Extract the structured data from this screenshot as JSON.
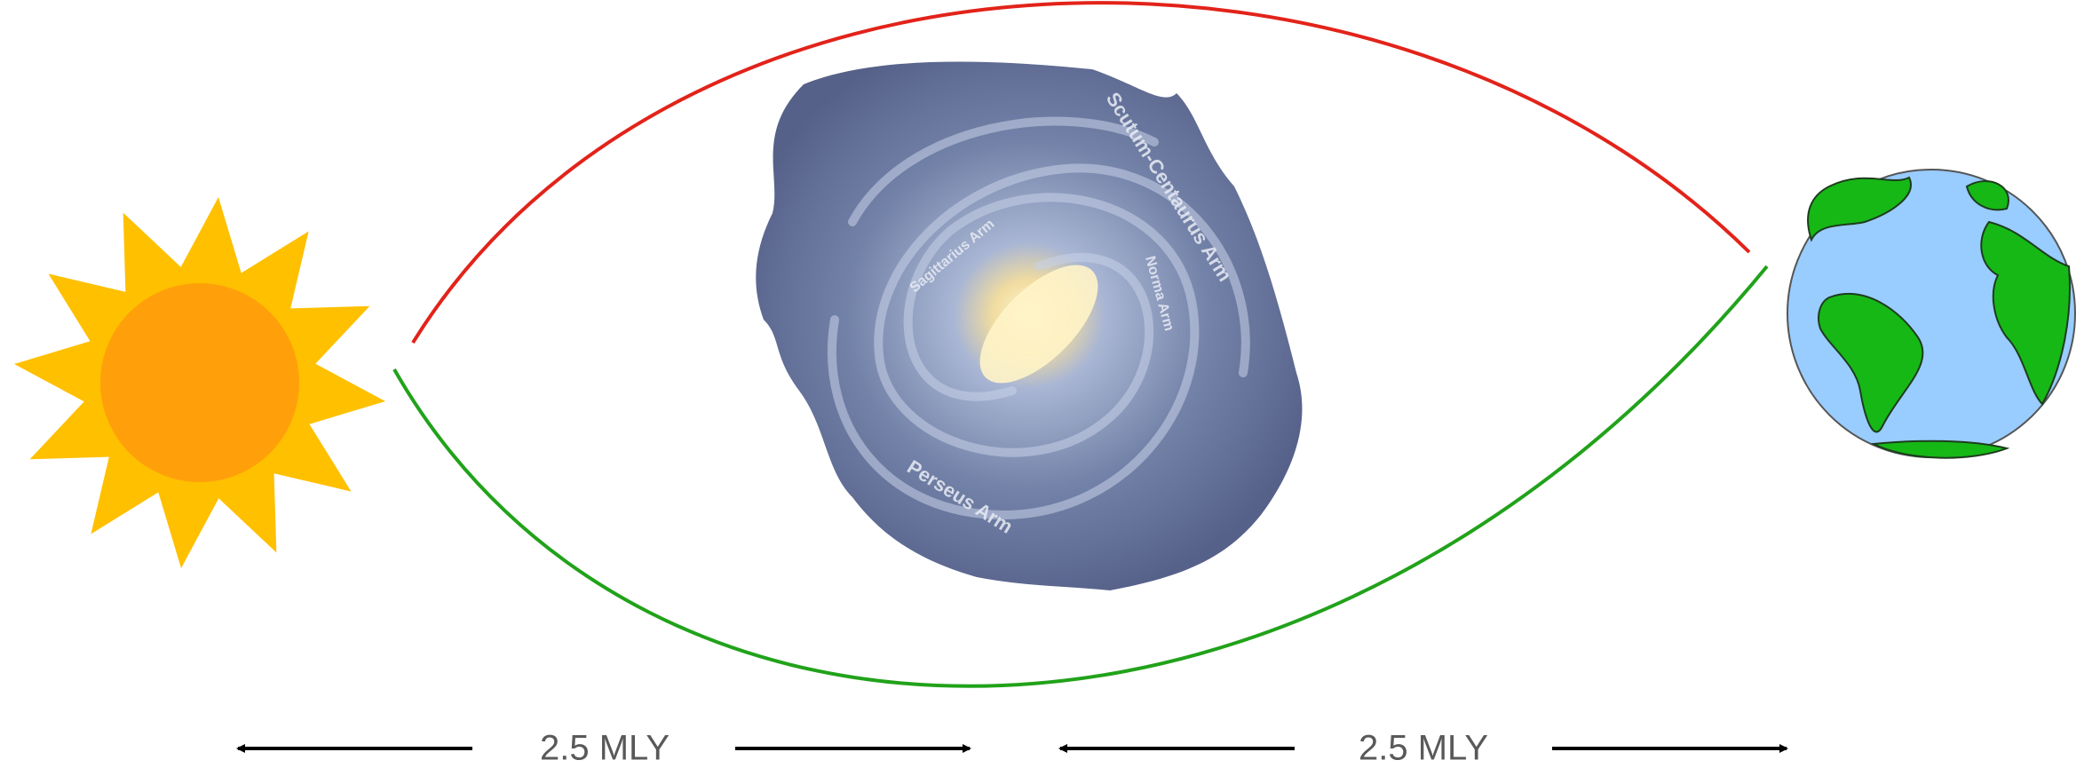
{
  "distances": [
    {
      "label": "2.5 MLY"
    },
    {
      "label": "2.5 MLY"
    }
  ],
  "galaxy": {
    "labels": [
      "Scutum-Centaurus Arm",
      "Perseus Arm",
      "Sagittarius Arm",
      "Norma Arm"
    ]
  }
}
